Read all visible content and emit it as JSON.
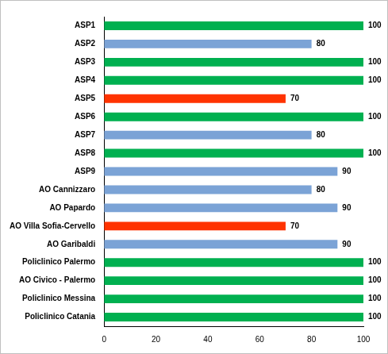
{
  "chart_data": {
    "type": "bar",
    "orientation": "horizontal",
    "categories": [
      "ASP1",
      "ASP2",
      "ASP3",
      "ASP4",
      "ASP5",
      "ASP6",
      "ASP7",
      "ASP8",
      "ASP9",
      "AO Cannizzaro",
      "AO Papardo",
      "AO Villa Sofia-Cervello",
      "AO Garibaldi",
      "Policlinico Palermo",
      "AO Civico - Palermo",
      "Policlinico Messina",
      "Policlinico Catania"
    ],
    "values": [
      100,
      80,
      100,
      100,
      70,
      100,
      80,
      100,
      90,
      80,
      90,
      70,
      90,
      100,
      100,
      100,
      100
    ],
    "colors": [
      "#00b050",
      "#7ba3d6",
      "#00b050",
      "#00b050",
      "#ff3300",
      "#00b050",
      "#7ba3d6",
      "#00b050",
      "#7ba3d6",
      "#7ba3d6",
      "#7ba3d6",
      "#ff3300",
      "#7ba3d6",
      "#00b050",
      "#00b050",
      "#00b050",
      "#00b050"
    ],
    "xlim": [
      0,
      100
    ],
    "xticks": [
      0,
      20,
      40,
      60,
      80,
      100
    ],
    "grid": false,
    "data_labels": true
  }
}
